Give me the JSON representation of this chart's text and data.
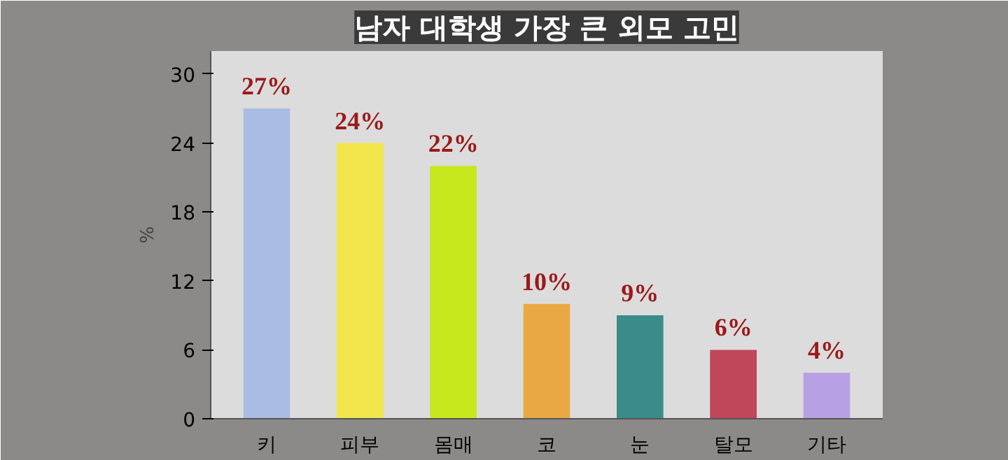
{
  "chart_data": {
    "type": "bar",
    "title": "남자 대학생 가장 큰 외모 고민",
    "ylabel": "%",
    "categories": [
      "키",
      "피부",
      "몸매",
      "코",
      "눈",
      "탈모",
      "기타"
    ],
    "values": [
      27,
      24,
      22,
      10,
      9,
      6,
      4
    ],
    "colors": [
      "#a9bde3",
      "#f2e64c",
      "#c6e81c",
      "#e9a843",
      "#3b8c89",
      "#c0465a",
      "#b8a0e4"
    ],
    "value_labels": [
      "27%",
      "24%",
      "22%",
      "10%",
      "9%",
      "6%",
      "4%"
    ],
    "ylim": [
      0,
      32
    ],
    "yticks": [
      0,
      6,
      12,
      18,
      24,
      30
    ],
    "grid": false
  }
}
